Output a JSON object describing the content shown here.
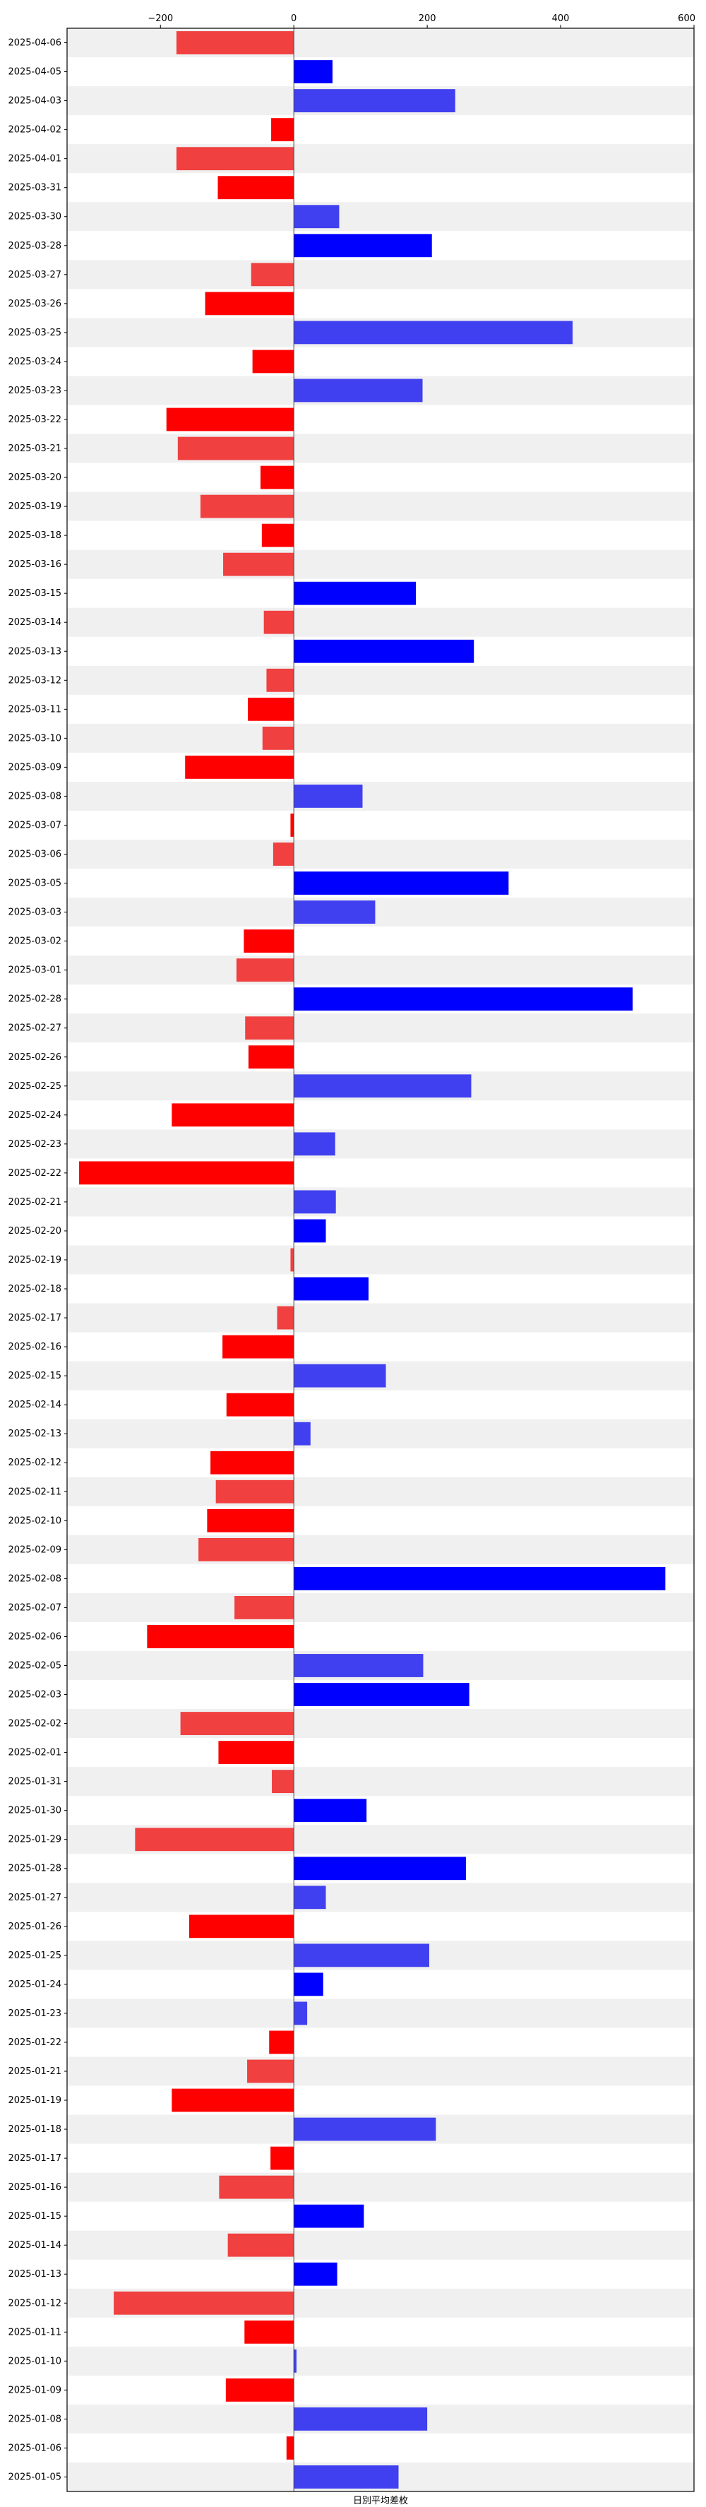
{
  "chart_data": {
    "type": "bar",
    "orientation": "horizontal",
    "title": "",
    "xlabel": "日別平均差枚",
    "ylabel": "",
    "xlim": [
      -340,
      600
    ],
    "xticks": [
      -200,
      0,
      200,
      400,
      600
    ],
    "xtick_labels": [
      "−200",
      "0",
      "200",
      "400",
      "600"
    ],
    "grid": false,
    "legend": "none",
    "zero_line": true,
    "row_stripes": true,
    "colors": {
      "positive_strong": "#0000ff",
      "positive_light": "#4040f0",
      "negative_strong": "#ff0000",
      "negative_light": "#f04040",
      "stripe": "#f0f0f0"
    },
    "categories": [
      "2025-04-06",
      "2025-04-05",
      "2025-04-03",
      "2025-04-02",
      "2025-04-01",
      "2025-03-31",
      "2025-03-30",
      "2025-03-28",
      "2025-03-27",
      "2025-03-26",
      "2025-03-25",
      "2025-03-24",
      "2025-03-23",
      "2025-03-22",
      "2025-03-21",
      "2025-03-20",
      "2025-03-19",
      "2025-03-18",
      "2025-03-16",
      "2025-03-15",
      "2025-03-14",
      "2025-03-13",
      "2025-03-12",
      "2025-03-11",
      "2025-03-10",
      "2025-03-09",
      "2025-03-08",
      "2025-03-07",
      "2025-03-06",
      "2025-03-05",
      "2025-03-03",
      "2025-03-02",
      "2025-03-01",
      "2025-02-28",
      "2025-02-27",
      "2025-02-26",
      "2025-02-25",
      "2025-02-24",
      "2025-02-23",
      "2025-02-22",
      "2025-02-21",
      "2025-02-20",
      "2025-02-19",
      "2025-02-18",
      "2025-02-17",
      "2025-02-16",
      "2025-02-15",
      "2025-02-14",
      "2025-02-13",
      "2025-02-12",
      "2025-02-11",
      "2025-02-10",
      "2025-02-09",
      "2025-02-08",
      "2025-02-07",
      "2025-02-06",
      "2025-02-05",
      "2025-02-03",
      "2025-02-02",
      "2025-02-01",
      "2025-01-31",
      "2025-01-30",
      "2025-01-29",
      "2025-01-28",
      "2025-01-27",
      "2025-01-26",
      "2025-01-25",
      "2025-01-24",
      "2025-01-23",
      "2025-01-22",
      "2025-01-21",
      "2025-01-19",
      "2025-01-18",
      "2025-01-17",
      "2025-01-16",
      "2025-01-15",
      "2025-01-14",
      "2025-01-13",
      "2025-01-12",
      "2025-01-11",
      "2025-01-10",
      "2025-01-09",
      "2025-01-08",
      "2025-01-06",
      "2025-01-05"
    ],
    "values": [
      -176,
      58,
      242,
      -34,
      -176,
      -114,
      68,
      207,
      -64,
      -133,
      418,
      -62,
      193,
      -191,
      -174,
      -50,
      -140,
      -48,
      -106,
      183,
      -45,
      270,
      -41,
      -69,
      -47,
      -163,
      103,
      -5,
      -31,
      322,
      122,
      -75,
      -86,
      508,
      -73,
      -68,
      266,
      -183,
      62,
      -322,
      63,
      48,
      -5,
      112,
      -25,
      -107,
      138,
      -101,
      25,
      -125,
      -117,
      -130,
      -143,
      557,
      -89,
      -220,
      194,
      263,
      -170,
      -113,
      -33,
      109,
      -238,
      258,
      48,
      -157,
      203,
      44,
      20,
      -37,
      -70,
      -183,
      213,
      -35,
      -112,
      105,
      -99,
      65,
      -270,
      -74,
      4,
      -102,
      200,
      -11,
      157
    ],
    "emphasis": [
      false,
      true,
      false,
      true,
      false,
      true,
      false,
      true,
      false,
      true,
      false,
      true,
      false,
      true,
      false,
      true,
      false,
      true,
      false,
      true,
      false,
      true,
      false,
      true,
      false,
      true,
      false,
      true,
      false,
      true,
      false,
      true,
      false,
      true,
      false,
      true,
      false,
      true,
      false,
      true,
      false,
      true,
      false,
      true,
      false,
      true,
      false,
      true,
      false,
      true,
      false,
      true,
      false,
      true,
      false,
      true,
      false,
      true,
      false,
      true,
      false,
      true,
      false,
      true,
      false,
      true,
      false,
      true,
      false,
      true,
      false,
      true,
      false,
      true,
      false,
      true,
      false,
      true,
      false,
      true,
      false,
      true,
      false,
      true,
      false
    ]
  }
}
